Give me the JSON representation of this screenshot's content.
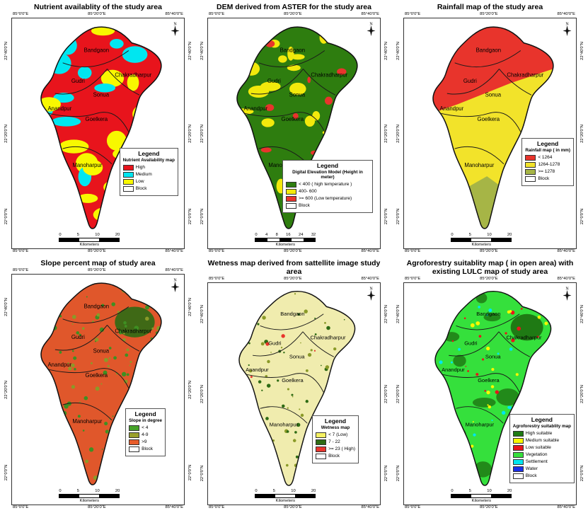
{
  "compass_label": "N",
  "axis": {
    "lon": [
      "85°0'0\"E",
      "85°20'0\"E",
      "85°40'0\"E"
    ],
    "lat": [
      "22°40'0\"N",
      "22°20'0\"N",
      "22°0'0\"N"
    ]
  },
  "blocks": [
    "Bandgaon",
    "Gudri",
    "Chakradharpur",
    "Sonua",
    "Anandpur",
    "Goelkera",
    "Manoharpur"
  ],
  "panels": [
    {
      "id": "nutrient",
      "title": "Nutrient availablity of the study area",
      "legend": {
        "title": "Legend",
        "subtitle": "Nutrient Availability map",
        "items": [
          {
            "label": "High",
            "color": "#e8141c"
          },
          {
            "label": "Medium",
            "color": "#00e6f0"
          },
          {
            "label": "Low",
            "color": "#f8f800"
          },
          {
            "label": "Block",
            "color": "#ffffff"
          }
        ]
      },
      "scale": {
        "ticks": [
          "0",
          "5",
          "10",
          "20"
        ],
        "unit": "Kilometers"
      },
      "map": {
        "style": "blobs",
        "base": "#e8141c",
        "overlays": [
          "#00e6f0",
          "#f8f800"
        ]
      }
    },
    {
      "id": "dem",
      "title": "DEM derived from ASTER for the study area",
      "legend": {
        "title": "Legend",
        "subtitle": "Digital Elevation Model (Height in meter)",
        "items": [
          {
            "label": "< 400 ( high temperature )",
            "color": "#2e7d0f"
          },
          {
            "label": "400- 600",
            "color": "#f2e90c"
          },
          {
            "label": ">= 600 (Low temperature)",
            "color": "#e8342c"
          },
          {
            "label": "Block",
            "color": "#ffffff"
          }
        ]
      },
      "scale": {
        "ticks": [
          "0",
          "4",
          "8",
          "16",
          "24",
          "32"
        ],
        "unit": "Kilometers"
      },
      "map": {
        "style": "mottle",
        "base": "#2e7d0f",
        "overlays": [
          "#f2e90c",
          "#e8342c"
        ]
      }
    },
    {
      "id": "rainfall",
      "title": "Rainfall map of the study area",
      "legend": {
        "title": "Legend",
        "subtitle": "Rainfall map ( in mm)",
        "items": [
          {
            "label": "< 1264",
            "color": "#e8342c"
          },
          {
            "label": "1264-1278",
            "color": "#f2e32a"
          },
          {
            "label": ">= 1278",
            "color": "#a6b546"
          },
          {
            "label": "Block",
            "color": "#ffffff"
          }
        ]
      },
      "scale": {
        "ticks": [
          "0",
          "5",
          "10",
          "20"
        ],
        "unit": "Kilometers"
      },
      "map": {
        "style": "bands",
        "base": "#f2e32a",
        "overlays": [
          "#e8342c",
          "#a6b546"
        ]
      }
    },
    {
      "id": "slope",
      "title": "Slope percent  map of study area",
      "legend": {
        "title": "Legend",
        "subtitle": "Slope in degree",
        "items": [
          {
            "label": "< 4",
            "color": "#46a32a"
          },
          {
            "label": "4-9",
            "color": "#9aa02c"
          },
          {
            "label": ">9",
            "color": "#e85c2a"
          },
          {
            "label": "Block",
            "color": "#ffffff"
          }
        ]
      },
      "scale": {
        "ticks": [
          "0",
          "5",
          "10",
          "20"
        ],
        "unit": "Kilometers"
      },
      "map": {
        "style": "speckle",
        "base": "#e0572b",
        "overlays": [
          "#2e6b14",
          "#8a9a28",
          "#3f8f22"
        ]
      }
    },
    {
      "id": "wetness",
      "title": "Wetness map derived from sattellite image  study area",
      "legend": {
        "title": "Legend",
        "subtitle": "Wetness map",
        "items": [
          {
            "label": "< 7    (Low)",
            "color": "#f5f163"
          },
          {
            "label": "7 - 22",
            "color": "#2e6b14"
          },
          {
            "label": ">= 23   ( High)",
            "color": "#e8342c"
          },
          {
            "label": "Block",
            "color": "#ffffff"
          }
        ]
      },
      "scale": {
        "ticks": [
          "0",
          "5",
          "10",
          "20"
        ],
        "unit": "Kilometers"
      },
      "map": {
        "style": "palemottle",
        "base": "#f0ecae",
        "overlays": [
          "#8a9a28",
          "#2e6b14",
          "#e8342c"
        ]
      }
    },
    {
      "id": "agroforestry",
      "title": "Agroforestry suitablity map ( in open area) with existing LULC map of study area",
      "legend": {
        "title": "Legend",
        "subtitle": "Agroforestry suitablity map",
        "items": [
          {
            "label": "High suitable",
            "color": "#1f7a14"
          },
          {
            "label": "Medium suitable",
            "color": "#f8f800"
          },
          {
            "label": "Low suitable",
            "color": "#e8141c"
          },
          {
            "label": "Vegetation",
            "color": "#35e03c"
          },
          {
            "label": "Settlement",
            "color": "#00e6f0"
          },
          {
            "label": "Water",
            "color": "#1b2fe8"
          },
          {
            "label": "Block",
            "color": "#ffffff"
          }
        ]
      },
      "scale": {
        "ticks": [
          "0",
          "5",
          "10",
          "20"
        ],
        "unit": "Kilometers"
      },
      "map": {
        "style": "agro",
        "base": "#35e03c",
        "overlays": [
          "#1f7a14",
          "#e8141c",
          "#f8f800",
          "#00e6f0"
        ]
      }
    }
  ]
}
